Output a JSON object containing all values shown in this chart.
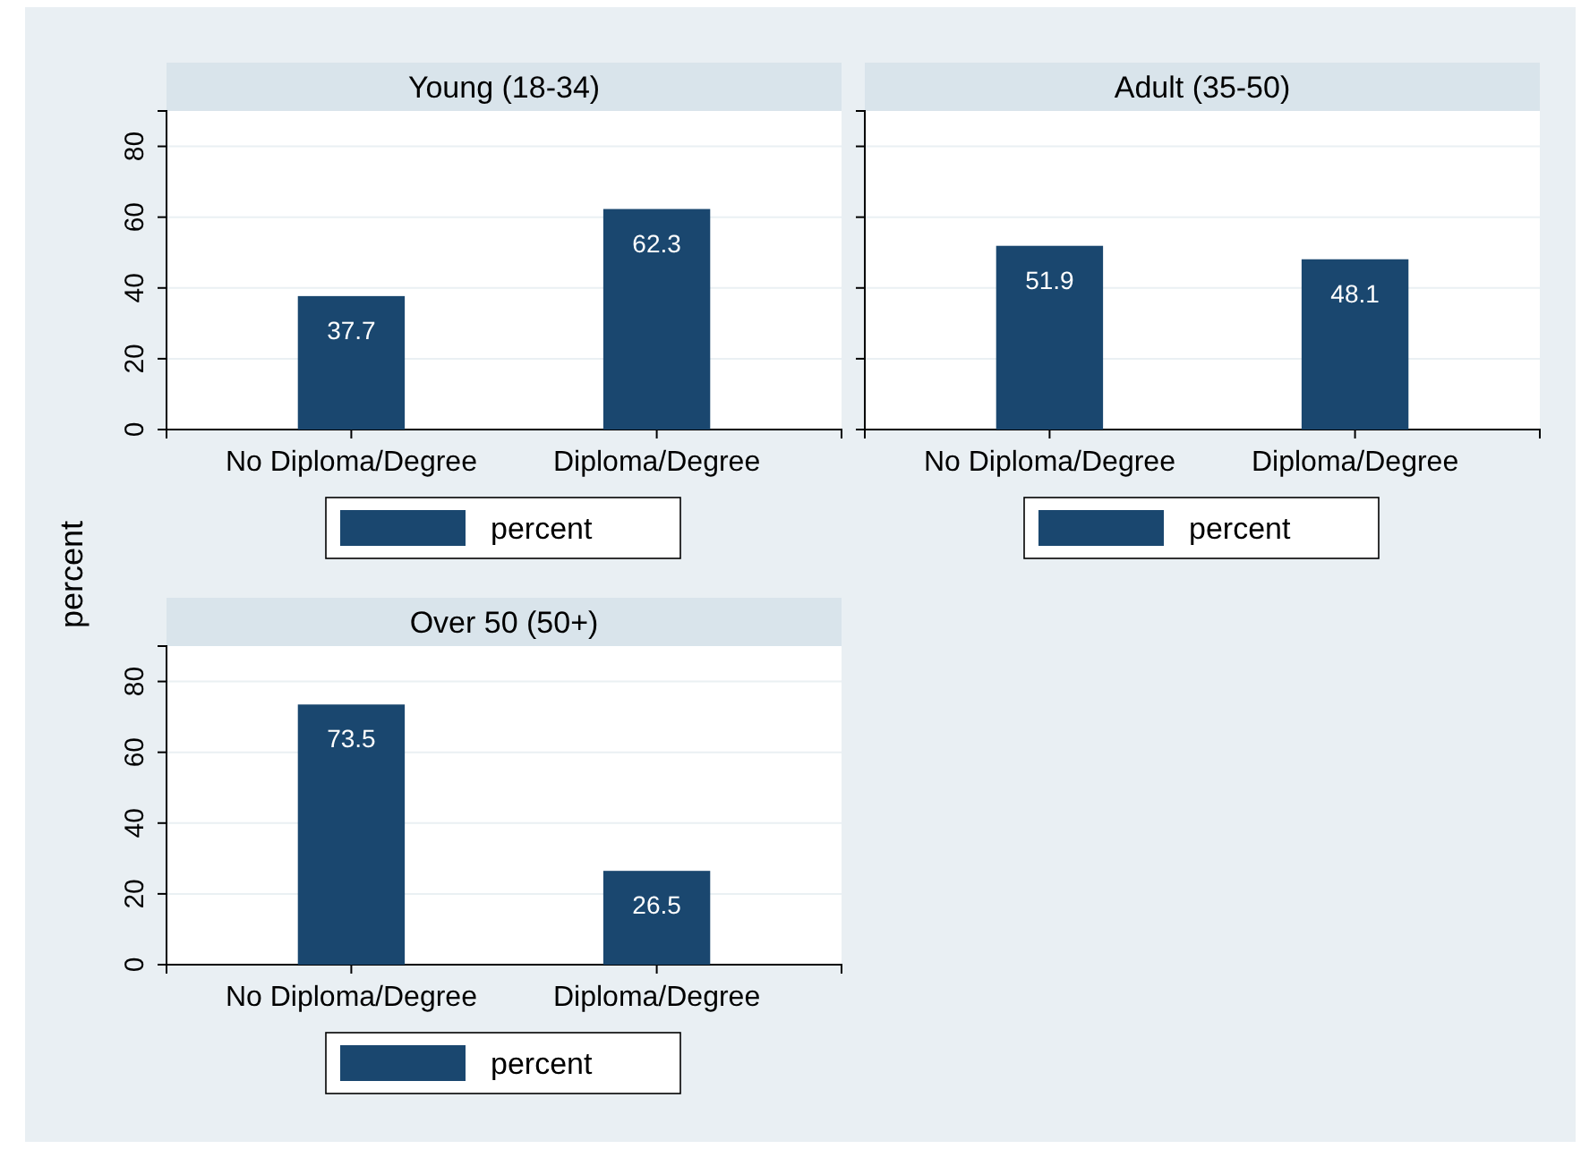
{
  "chart_data": [
    {
      "type": "bar",
      "title": "Young (18-34)",
      "ylabel": "percent",
      "categories": [
        "No Diploma/Degree",
        "Diploma/Degree"
      ],
      "series": [
        {
          "name": "percent",
          "color": "#1a476f",
          "values": [
            37.7,
            62.3
          ]
        }
      ],
      "ylim": [
        0,
        90
      ],
      "yticks": [
        0,
        20,
        40,
        60,
        80
      ],
      "grid": "y",
      "legend": "bottom",
      "data_labels": true
    },
    {
      "type": "bar",
      "title": "Adult (35-50)",
      "categories": [
        "No Diploma/Degree",
        "Diploma/Degree"
      ],
      "series": [
        {
          "name": "percent",
          "color": "#1a476f",
          "values": [
            51.9,
            48.1
          ]
        }
      ],
      "ylim": [
        0,
        90
      ],
      "yticks": [
        0,
        20,
        40,
        60,
        80
      ],
      "grid": "y",
      "legend": "bottom",
      "data_labels": true,
      "tick_labels": "x"
    },
    {
      "type": "bar",
      "title": "Over 50 (50+)",
      "categories": [
        "No Diploma/Degree",
        "Diploma/Degree"
      ],
      "series": [
        {
          "name": "percent",
          "color": "#1a476f",
          "values": [
            73.5,
            26.5
          ]
        }
      ],
      "ylim": [
        0,
        90
      ],
      "yticks": [
        0,
        20,
        40,
        60,
        80
      ],
      "grid": "y",
      "legend": "bottom",
      "data_labels": true
    }
  ]
}
